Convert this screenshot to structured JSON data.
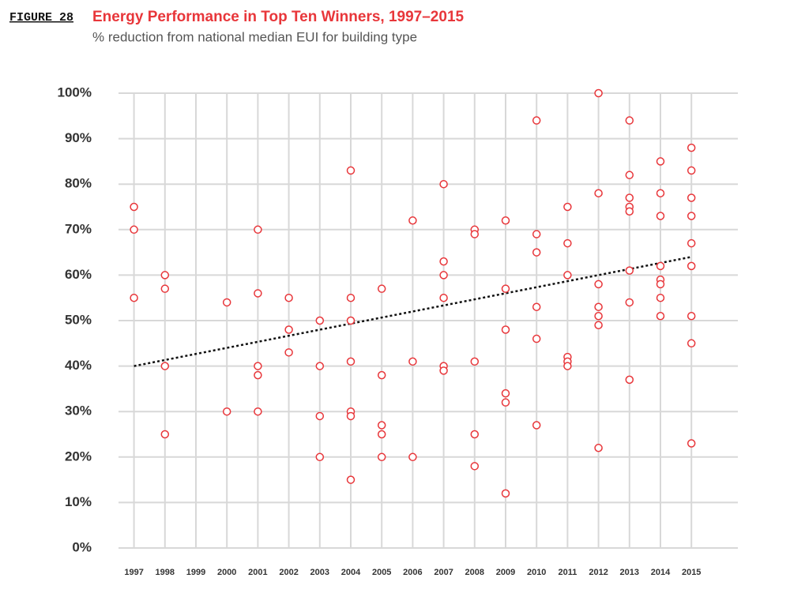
{
  "figure_label": "FIGURE 28",
  "chart_data": {
    "type": "scatter",
    "title": "Energy Performance in Top Ten Winners, 1997–2015",
    "subtitle": "% reduction from national median EUI for building type",
    "color": "#e8363a",
    "x": [
      1997,
      1997,
      1997,
      1998,
      1998,
      1998,
      1998,
      2000,
      2000,
      2001,
      2001,
      2001,
      2001,
      2001,
      2002,
      2002,
      2002,
      2003,
      2003,
      2003,
      2003,
      2004,
      2004,
      2004,
      2004,
      2004,
      2004,
      2004,
      2005,
      2005,
      2005,
      2005,
      2005,
      2006,
      2006,
      2006,
      2007,
      2007,
      2007,
      2007,
      2007,
      2007,
      2008,
      2008,
      2008,
      2008,
      2008,
      2009,
      2009,
      2009,
      2009,
      2009,
      2009,
      2010,
      2010,
      2010,
      2010,
      2010,
      2010,
      2011,
      2011,
      2011,
      2011,
      2011,
      2011,
      2012,
      2012,
      2012,
      2012,
      2012,
      2012,
      2012,
      2013,
      2013,
      2013,
      2013,
      2013,
      2013,
      2013,
      2013,
      2014,
      2014,
      2014,
      2014,
      2014,
      2014,
      2014,
      2014,
      2015,
      2015,
      2015,
      2015,
      2015,
      2015,
      2015,
      2015,
      2015
    ],
    "values": [
      75,
      70,
      55,
      60,
      57,
      40,
      25,
      54,
      30,
      70,
      56,
      40,
      38,
      30,
      55,
      48,
      43,
      50,
      40,
      29,
      20,
      83,
      55,
      50,
      41,
      30,
      29,
      15,
      57,
      38,
      27,
      25,
      20,
      72,
      41,
      20,
      80,
      63,
      60,
      55,
      40,
      39,
      70,
      69,
      41,
      25,
      18,
      72,
      57,
      48,
      34,
      32,
      12,
      94,
      69,
      65,
      53,
      46,
      27,
      75,
      67,
      60,
      42,
      41,
      40,
      100,
      78,
      58,
      53,
      51,
      49,
      22,
      94,
      82,
      77,
      75,
      74,
      61,
      54,
      37,
      85,
      78,
      73,
      62,
      59,
      58,
      55,
      51,
      88,
      83,
      77,
      73,
      67,
      62,
      51,
      45,
      23
    ],
    "trendline": {
      "x": [
        1997,
        2015
      ],
      "values": [
        40,
        64
      ]
    },
    "xlim": [
      1996.5,
      2016.5
    ],
    "xticks": [
      1997,
      1998,
      1999,
      2000,
      2001,
      2002,
      2003,
      2004,
      2005,
      2006,
      2007,
      2008,
      2009,
      2010,
      2011,
      2012,
      2013,
      2014,
      2015
    ],
    "ylim": [
      0,
      100
    ],
    "yticks": [
      {
        "value": 0,
        "label": "0%"
      },
      {
        "value": 10,
        "label": "10%"
      },
      {
        "value": 20,
        "label": "20%"
      },
      {
        "value": 30,
        "label": "30%"
      },
      {
        "value": 40,
        "label": "40%"
      },
      {
        "value": 50,
        "label": "50%"
      },
      {
        "value": 60,
        "label": "60%"
      },
      {
        "value": 70,
        "label": "70%"
      },
      {
        "value": 80,
        "label": "80%"
      },
      {
        "value": 90,
        "label": "90%"
      },
      {
        "value": 100,
        "label": "100%"
      }
    ],
    "grid": true
  }
}
